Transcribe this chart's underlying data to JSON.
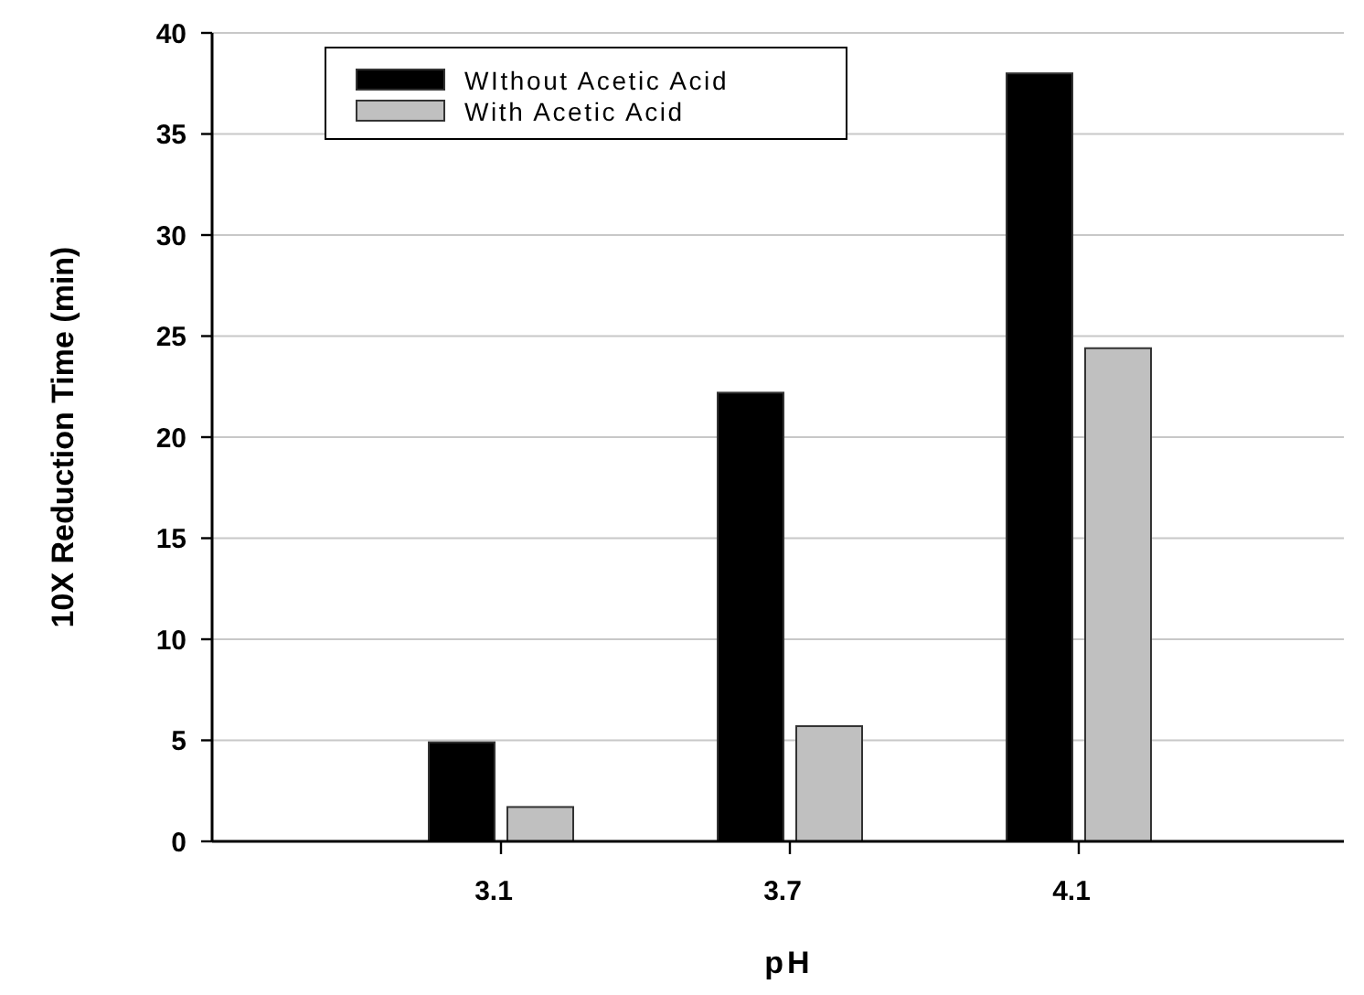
{
  "chart_data": {
    "type": "bar",
    "xlabel": "pH",
    "ylabel": "10X Reduction Time (min)",
    "categories": [
      "3.1",
      "3.7",
      "4.1"
    ],
    "series": [
      {
        "name": "WIthout Acetic Acid",
        "color": "#000000",
        "values": [
          4.9,
          22.2,
          38.0
        ]
      },
      {
        "name": "With Acetic Acid",
        "color": "#c0c0c0",
        "values": [
          1.7,
          5.7,
          24.4
        ]
      }
    ],
    "ylim": [
      0,
      40
    ],
    "yticks": [
      0,
      5,
      10,
      15,
      20,
      25,
      30,
      35,
      40
    ],
    "grid": "y",
    "legend": "top left"
  }
}
